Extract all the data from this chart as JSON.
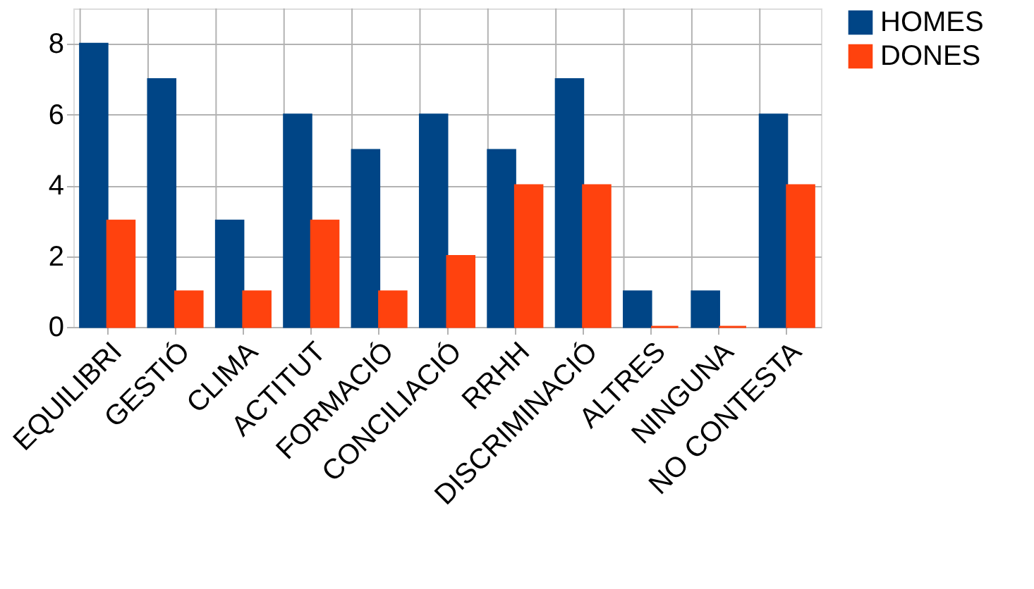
{
  "chart_data": {
    "type": "bar",
    "categories": [
      "EQUILIBRI",
      "GESTIÓ",
      "CLIMA",
      "ACTITUT",
      "FORMACIÓ",
      "CONCILIACIÓ",
      "RRHH",
      "DISCRIMINACIÓ",
      "ALTRES",
      "NINGUNA",
      "NO CONTESTA"
    ],
    "series": [
      {
        "name": "HOMES",
        "color": "#004586",
        "values": [
          8,
          7,
          3,
          6,
          5,
          6,
          5,
          7,
          1,
          1,
          6
        ]
      },
      {
        "name": "DONES",
        "color": "#ff420e",
        "values": [
          3,
          1,
          1,
          3,
          1,
          2,
          4,
          4,
          0,
          0,
          4
        ]
      }
    ],
    "ylim": [
      0,
      9
    ],
    "yticks": [
      0,
      2,
      4,
      6,
      8
    ],
    "grid": true,
    "legend": "right"
  }
}
